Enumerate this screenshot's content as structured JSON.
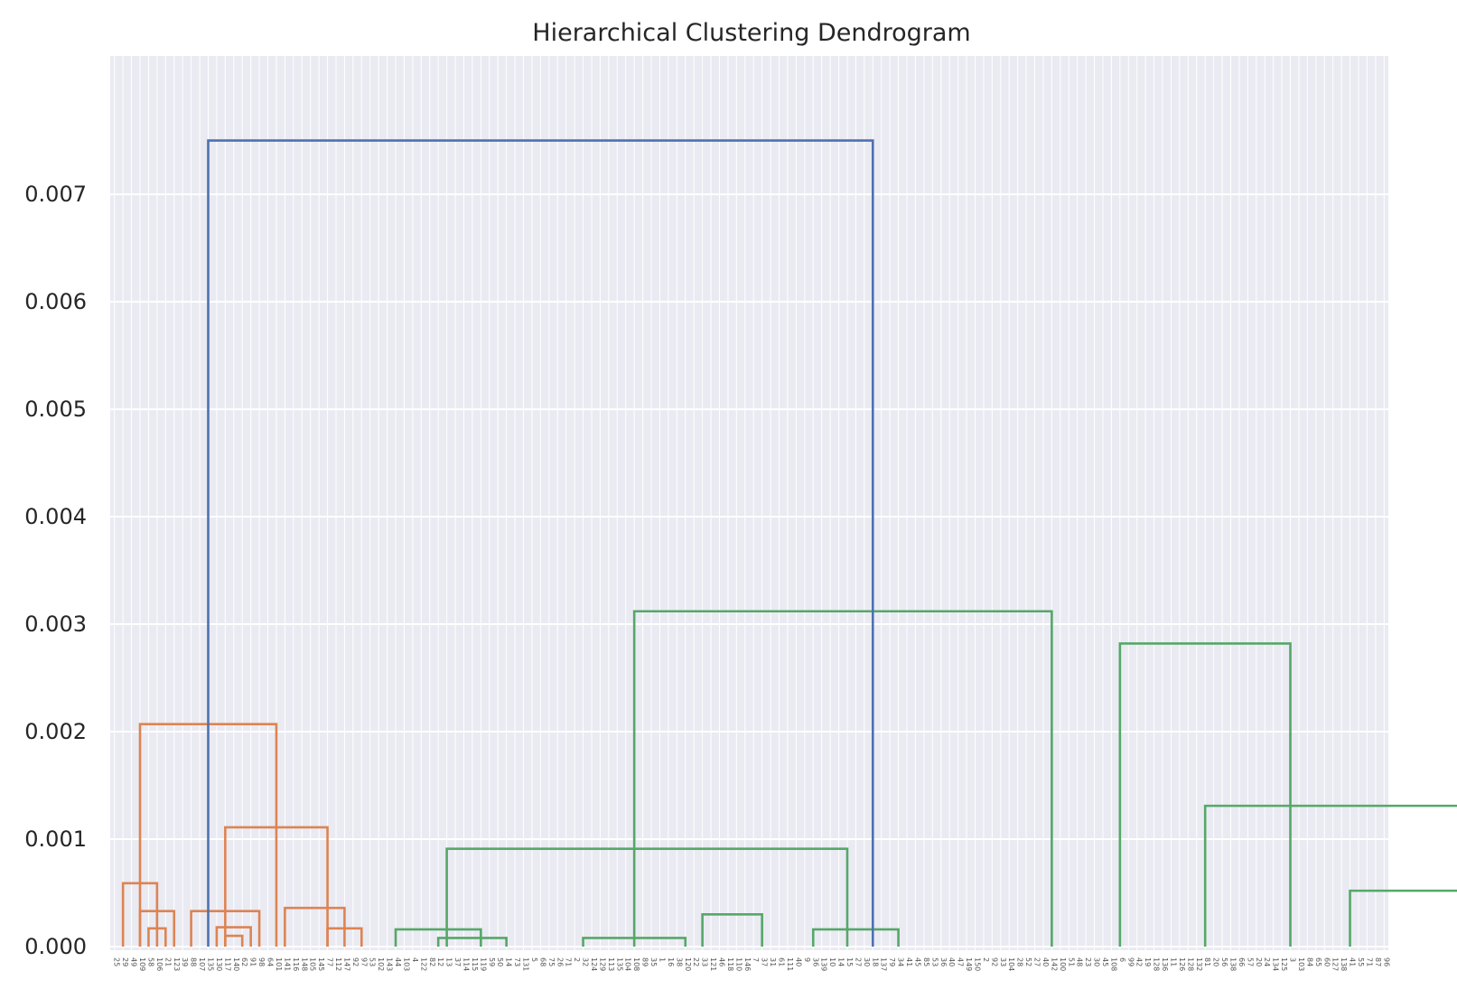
{
  "chart_data": {
    "type": "dendrogram",
    "title": "Hierarchical Clustering Dendrogram",
    "xlabel": "",
    "ylabel": "",
    "ylim": [
      0,
      0.0079
    ],
    "y_ticks": [
      "0.000",
      "0.001",
      "0.002",
      "0.003",
      "0.004",
      "0.005",
      "0.006",
      "0.007"
    ],
    "y_tick_values": [
      0,
      0.001,
      0.002,
      0.003,
      0.004,
      0.005,
      0.006,
      0.007
    ],
    "grid": true,
    "background": "#eaeaf2",
    "leaf_count": 150,
    "leaf_labels": [
      "25",
      "29",
      "49",
      "109",
      "58",
      "106",
      "21",
      "123",
      "39",
      "88",
      "107",
      "135",
      "130",
      "117",
      "140",
      "62",
      "91",
      "98",
      "64",
      "101",
      "141",
      "116",
      "148",
      "105",
      "145",
      "77",
      "112",
      "147",
      "92",
      "97",
      "53",
      "102",
      "143",
      "44",
      "103",
      "4",
      "122",
      "82",
      "12",
      "13",
      "37",
      "114",
      "115",
      "119",
      "59",
      "50",
      "14",
      "73",
      "131",
      "5",
      "68",
      "75",
      "26",
      "71",
      "2",
      "32",
      "124",
      "129",
      "113",
      "135",
      "104",
      "108",
      "89",
      "35",
      "1",
      "16",
      "38",
      "120",
      "22",
      "33",
      "121",
      "46",
      "118",
      "110",
      "146",
      "7",
      "37",
      "31",
      "61",
      "111",
      "40",
      "9",
      "36",
      "139",
      "10",
      "14",
      "15",
      "27",
      "30",
      "18",
      "137",
      "79",
      "34",
      "41",
      "45",
      "85",
      "53",
      "36",
      "40",
      "47",
      "149",
      "150",
      "2",
      "92",
      "33",
      "104",
      "28",
      "52",
      "27",
      "40",
      "142",
      "100",
      "51",
      "48",
      "23",
      "30",
      "45",
      "108",
      "6",
      "99",
      "42",
      "19",
      "128",
      "136",
      "11",
      "126",
      "128",
      "132",
      "81",
      "20",
      "56",
      "138",
      "66",
      "57",
      "20",
      "24",
      "134",
      "125",
      "3",
      "103",
      "84",
      "65",
      "60",
      "127",
      "138",
      "41",
      "55",
      "71",
      "87",
      "96"
    ],
    "clusters": [
      {
        "name": "C1",
        "color": "#dd8452"
      },
      {
        "name": "C2",
        "color": "#55a868"
      },
      {
        "name": "root",
        "color": "#4c72b0"
      }
    ],
    "merges": [
      {
        "left": 1,
        "right": 5,
        "height": 0.00059,
        "cluster": "C1"
      },
      {
        "left": 3,
        "right": 7,
        "height": 0.00033,
        "cluster": "C1"
      },
      {
        "left": 4,
        "right": 6,
        "height": 0.00017,
        "cluster": "C1"
      },
      {
        "left": 9,
        "right": 17,
        "height": 0.00033,
        "cluster": "C1"
      },
      {
        "left": 12,
        "right": 16,
        "height": 0.00018,
        "cluster": "C1"
      },
      {
        "left": 13,
        "right": 15,
        "height": 0.0001,
        "cluster": "C1"
      },
      {
        "left": 20,
        "right": 27,
        "height": 0.00036,
        "cluster": "C1"
      },
      {
        "left": 25,
        "right": 29,
        "height": 0.00017,
        "cluster": "C1"
      },
      {
        "left": 13,
        "right": 25,
        "height": 0.00111,
        "cluster": "C1"
      },
      {
        "left": 3,
        "right": 19,
        "height": 0.00207,
        "cluster": "C1"
      },
      {
        "left": 33,
        "right": 43,
        "height": 0.00016,
        "cluster": "C2"
      },
      {
        "left": 38,
        "right": 46,
        "height": 8e-05,
        "cluster": "C2"
      },
      {
        "left": 39,
        "right": 86,
        "height": 0.00091,
        "cluster": "C2"
      },
      {
        "left": 55,
        "right": 67,
        "height": 8e-05,
        "cluster": "C2"
      },
      {
        "left": 69,
        "right": 76,
        "height": 0.0003,
        "cluster": "C2"
      },
      {
        "left": 82,
        "right": 92,
        "height": 0.00016,
        "cluster": "C2"
      },
      {
        "left": 61,
        "right": 110,
        "height": 0.00312,
        "cluster": "C2"
      },
      {
        "left": 118,
        "right": 138,
        "height": 0.00282,
        "cluster": "C2"
      },
      {
        "left": 128,
        "right": 165,
        "height": 0.00131,
        "cluster": "C2"
      },
      {
        "left": 145,
        "right": 170,
        "height": 0.00052,
        "cluster": "C2"
      },
      {
        "left": 172,
        "right": 191,
        "height": 0.00034,
        "cluster": "C2"
      },
      {
        "left": 187,
        "right": 204,
        "height": 0.00013,
        "cluster": "C2"
      },
      {
        "left": 11,
        "right": 89,
        "height": 0.0075,
        "cluster": "root"
      }
    ]
  }
}
